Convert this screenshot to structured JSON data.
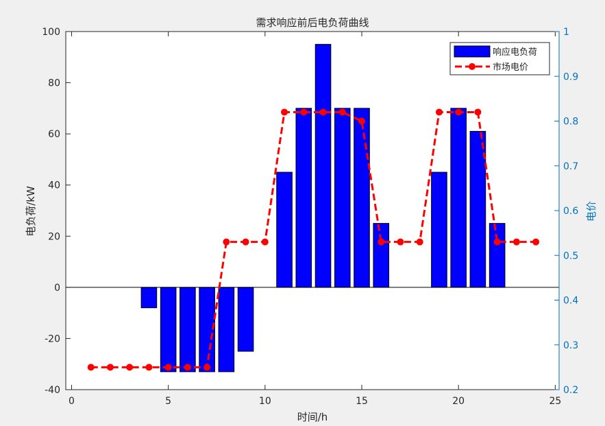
{
  "chart_data": {
    "type": "bar",
    "title": "需求响应前后电负荷曲线",
    "xlabel": "时间/h",
    "ylabel": "电负荷/kW",
    "ylabel_right": "电价",
    "xlim": [
      -0.3,
      25.2
    ],
    "ylim": [
      -40,
      100
    ],
    "ylim_right": [
      0.2,
      1.0
    ],
    "xticks": [
      0,
      5,
      10,
      15,
      20,
      25
    ],
    "yticks": [
      -40,
      -20,
      0,
      20,
      40,
      60,
      80,
      100
    ],
    "yticks_right": [
      0.2,
      0.3,
      0.4,
      0.5,
      0.6,
      0.7,
      0.8,
      0.9,
      1.0
    ],
    "grid": false,
    "legend_position": "top-right",
    "series": [
      {
        "name": "响应电负荷",
        "type": "bar",
        "axis": "left",
        "color": "#0000FF",
        "x": [
          1,
          2,
          3,
          4,
          5,
          6,
          7,
          8,
          9,
          10,
          11,
          12,
          13,
          14,
          15,
          16,
          17,
          18,
          19,
          20,
          21,
          22,
          23,
          24
        ],
        "values": [
          0,
          0,
          0,
          -8,
          -33,
          -33,
          -33,
          -33,
          -25,
          0,
          45,
          70,
          95,
          70,
          70,
          25,
          0,
          0,
          45,
          70,
          61,
          25,
          0,
          0
        ]
      },
      {
        "name": "市场电价",
        "type": "line",
        "axis": "right",
        "color": "#FF0000",
        "x": [
          1,
          2,
          3,
          4,
          5,
          6,
          7,
          8,
          9,
          10,
          11,
          12,
          13,
          14,
          15,
          16,
          17,
          18,
          19,
          20,
          21,
          22,
          23,
          24
        ],
        "values": [
          0.25,
          0.25,
          0.25,
          0.25,
          0.25,
          0.25,
          0.25,
          0.53,
          0.53,
          0.53,
          0.82,
          0.82,
          0.82,
          0.82,
          0.8,
          0.53,
          0.53,
          0.53,
          0.82,
          0.82,
          0.82,
          0.53,
          0.53,
          0.53
        ]
      }
    ]
  }
}
